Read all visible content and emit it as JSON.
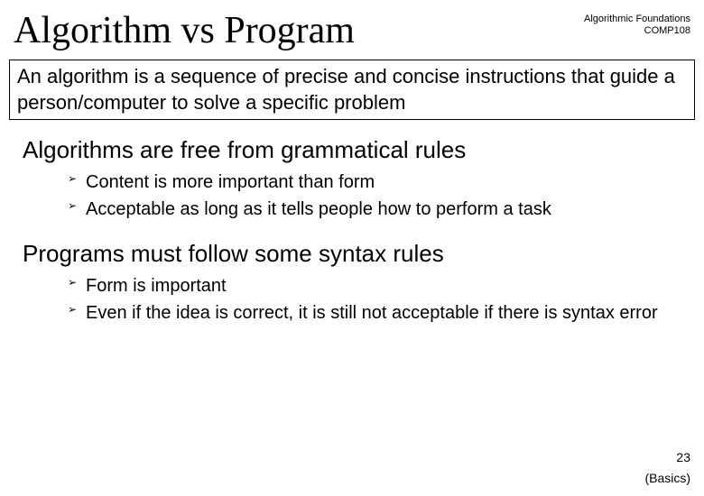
{
  "header": {
    "line1": "Algorithmic Foundations",
    "line2": "COMP108"
  },
  "title": "Algorithm vs Program",
  "definition": "An algorithm is a sequence of precise and concise instructions that guide a person/computer to solve a specific problem",
  "section1": {
    "heading": "Algorithms are free from grammatical rules",
    "bullets": [
      "Content is more important than form",
      "Acceptable as long as it tells people how to perform a task"
    ]
  },
  "section2": {
    "heading": "Programs must follow some syntax rules",
    "bullets": [
      "Form is important",
      "Even if the idea is correct, it is still not acceptable if there is syntax error"
    ]
  },
  "slideNumber": "23",
  "footer": "(Basics)",
  "colors": {
    "background": "#ffffff",
    "text": "#000000",
    "border": "#000000"
  },
  "fonts": {
    "title_family": "Georgia, serif",
    "body_family": "Comic Sans MS, sans-serif",
    "title_size": 42,
    "definition_size": 22,
    "heading_size": 26,
    "bullet_size": 20,
    "header_size": 11,
    "footer_size": 14
  }
}
